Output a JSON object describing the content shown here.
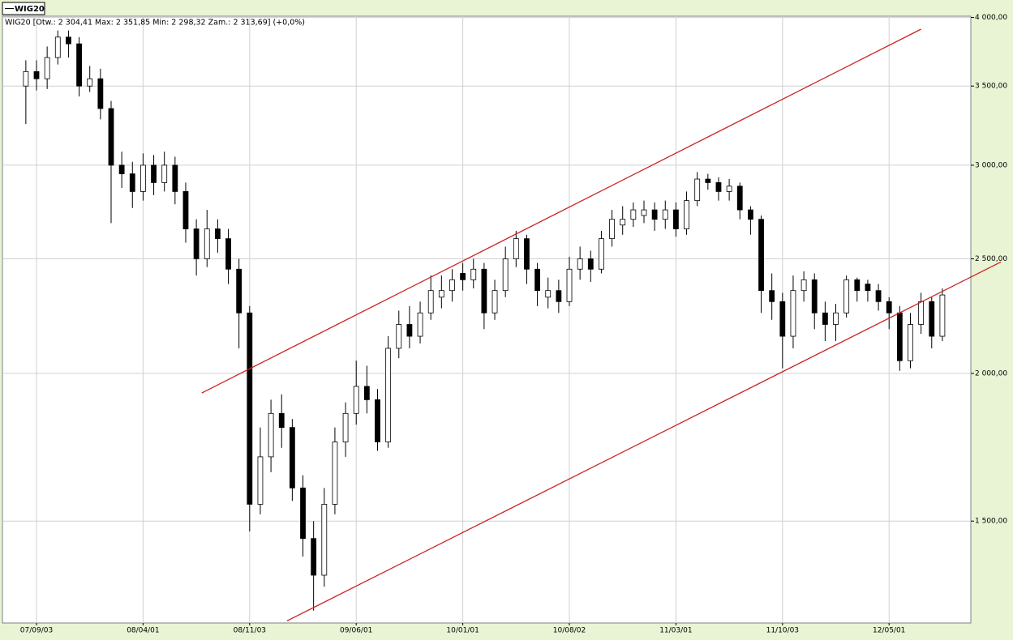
{
  "chart_data": {
    "type": "candlestick",
    "subtitle": "WIG20 [Otw.: 2 304,41  Max: 2 351,85  Min: 2 298,32  Zam.: 2 313,69] (+0,0%)",
    "categories": [
      null,
      "07/09/03",
      null,
      null,
      null,
      null,
      null,
      null,
      null,
      null,
      null,
      "08/04/01",
      null,
      null,
      null,
      null,
      null,
      null,
      null,
      null,
      null,
      "08/11/03",
      null,
      null,
      null,
      null,
      null,
      null,
      null,
      null,
      null,
      "09/06/01",
      null,
      null,
      null,
      null,
      null,
      null,
      null,
      null,
      null,
      "10/01/01",
      null,
      null,
      null,
      null,
      null,
      null,
      null,
      null,
      null,
      "10/08/02",
      null,
      null,
      null,
      null,
      null,
      null,
      null,
      null,
      null,
      "11/03/01",
      null,
      null,
      null,
      null,
      null,
      null,
      null,
      null,
      null,
      "11/10/03",
      null,
      null,
      null,
      null,
      null,
      null,
      null,
      null,
      null,
      "12/05/01",
      null,
      null,
      null,
      null,
      null
    ],
    "series": [
      {
        "name": "WIG20",
        "color": "#000000",
        "up_color": "#ffffff",
        "open": [
          3500,
          3600,
          3550,
          3700,
          3850,
          3800,
          3500,
          3550,
          3350,
          3000,
          2950,
          2850,
          3000,
          2900,
          3000,
          2850,
          2650,
          2500,
          2650,
          2600,
          2450,
          2250,
          1550,
          1700,
          1850,
          1800,
          1600,
          1450,
          1350,
          1550,
          1750,
          1850,
          1950,
          1900,
          1750,
          2100,
          2200,
          2150,
          2250,
          2320,
          2350,
          2430,
          2400,
          2450,
          2250,
          2350,
          2500,
          2600,
          2450,
          2320,
          2350,
          2300,
          2450,
          2500,
          2450,
          2600,
          2670,
          2700,
          2720,
          2750,
          2700,
          2750,
          2650,
          2800,
          2920,
          2900,
          2850,
          2880,
          2750,
          2700,
          2350,
          2300,
          2150,
          2350,
          2400,
          2250,
          2200,
          2250,
          2400,
          2380,
          2350,
          2300,
          2250,
          2050,
          2200,
          2300,
          2150
        ],
        "high": [
          3680,
          3680,
          3780,
          3900,
          3900,
          3850,
          3640,
          3620,
          3400,
          3080,
          3020,
          3070,
          3060,
          3080,
          3050,
          2900,
          2700,
          2750,
          2700,
          2650,
          2500,
          2280,
          1800,
          1900,
          1920,
          1830,
          1640,
          1500,
          1600,
          1800,
          1890,
          2050,
          2030,
          1940,
          2150,
          2260,
          2280,
          2300,
          2420,
          2420,
          2450,
          2480,
          2500,
          2480,
          2400,
          2560,
          2640,
          2620,
          2480,
          2410,
          2400,
          2510,
          2560,
          2540,
          2640,
          2750,
          2770,
          2790,
          2800,
          2790,
          2800,
          2790,
          2850,
          2960,
          2950,
          2930,
          2920,
          2900,
          2770,
          2720,
          2430,
          2340,
          2420,
          2440,
          2430,
          2300,
          2290,
          2420,
          2410,
          2400,
          2380,
          2320,
          2280,
          2250,
          2340,
          2320,
          2360
        ],
        "low": [
          3250,
          3470,
          3480,
          3650,
          3700,
          3430,
          3460,
          3280,
          2680,
          2870,
          2760,
          2800,
          2830,
          2850,
          2780,
          2580,
          2420,
          2460,
          2530,
          2380,
          2100,
          1470,
          1520,
          1650,
          1730,
          1560,
          1400,
          1260,
          1320,
          1520,
          1700,
          1810,
          1850,
          1720,
          1730,
          2060,
          2100,
          2120,
          2220,
          2270,
          2300,
          2350,
          2360,
          2180,
          2220,
          2320,
          2460,
          2380,
          2280,
          2270,
          2250,
          2280,
          2400,
          2390,
          2430,
          2560,
          2620,
          2660,
          2680,
          2640,
          2650,
          2610,
          2620,
          2770,
          2860,
          2800,
          2800,
          2700,
          2620,
          2250,
          2220,
          2020,
          2100,
          2300,
          2180,
          2130,
          2130,
          2230,
          2300,
          2300,
          2260,
          2180,
          2010,
          2020,
          2160,
          2100,
          2130
        ],
        "close": [
          3600,
          3550,
          3700,
          3850,
          3800,
          3500,
          3550,
          3350,
          3000,
          2950,
          2850,
          3000,
          2900,
          3000,
          2850,
          2650,
          2500,
          2650,
          2600,
          2450,
          2250,
          1550,
          1700,
          1850,
          1800,
          1600,
          1450,
          1350,
          1550,
          1750,
          1850,
          1950,
          1900,
          1750,
          2100,
          2200,
          2150,
          2250,
          2350,
          2350,
          2400,
          2400,
          2450,
          2250,
          2350,
          2500,
          2600,
          2450,
          2350,
          2350,
          2300,
          2450,
          2500,
          2450,
          2600,
          2700,
          2700,
          2750,
          2750,
          2700,
          2750,
          2650,
          2800,
          2920,
          2900,
          2850,
          2880,
          2750,
          2700,
          2350,
          2300,
          2150,
          2350,
          2400,
          2250,
          2200,
          2250,
          2400,
          2350,
          2350,
          2300,
          2250,
          2050,
          2200,
          2300,
          2150,
          2330
        ]
      }
    ],
    "lines": [
      {
        "color": "#cc2222",
        "x": [
          16.5,
          84
        ],
        "y": [
          1925,
          3910
        ]
      },
      {
        "color": "#cc2222",
        "x": [
          24.5,
          91.5
        ],
        "y": [
          1235,
          2485
        ]
      }
    ],
    "log_scale": true,
    "grid": true,
    "ylim": [
      1230,
      4010
    ],
    "yticks": [
      {
        "value": 1500,
        "label": "1 500,00"
      },
      {
        "value": 2000,
        "label": "2 000,00"
      },
      {
        "value": 2500,
        "label": "2 500,00"
      },
      {
        "value": 3000,
        "label": "3 000,00"
      },
      {
        "value": 3500,
        "label": "3 500,00"
      },
      {
        "value": 4000,
        "label": "4 000,00"
      }
    ]
  }
}
